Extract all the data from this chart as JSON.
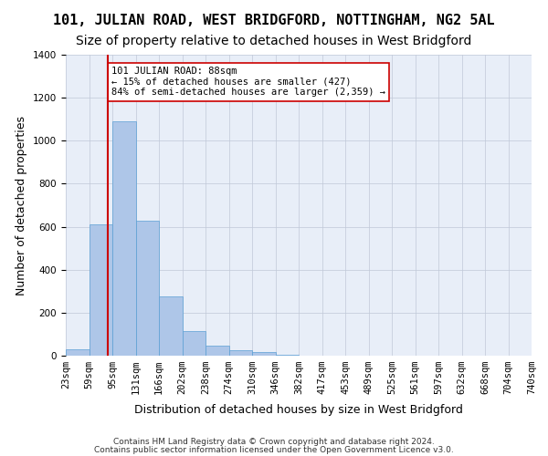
{
  "title": "101, JULIAN ROAD, WEST BRIDGFORD, NOTTINGHAM, NG2 5AL",
  "subtitle": "Size of property relative to detached houses in West Bridgford",
  "xlabel": "Distribution of detached houses by size in West Bridgford",
  "ylabel": "Number of detached properties",
  "footnote1": "Contains HM Land Registry data © Crown copyright and database right 2024.",
  "footnote2": "Contains public sector information licensed under the Open Government Licence v3.0.",
  "bin_labels": [
    "23sqm",
    "59sqm",
    "95sqm",
    "131sqm",
    "166sqm",
    "202sqm",
    "238sqm",
    "274sqm",
    "310sqm",
    "346sqm",
    "382sqm",
    "417sqm",
    "453sqm",
    "489sqm",
    "525sqm",
    "561sqm",
    "597sqm",
    "632sqm",
    "668sqm",
    "704sqm",
    "740sqm"
  ],
  "bar_values": [
    28,
    610,
    1090,
    630,
    275,
    115,
    45,
    25,
    15,
    5,
    2,
    0,
    0,
    0,
    0,
    0,
    0,
    0,
    0,
    0
  ],
  "bar_color": "#aec6e8",
  "bar_edge_color": "#5a9fd4",
  "grid_color": "#c0c8d8",
  "background_color": "#e8eef8",
  "vline_color": "#cc0000",
  "annotation_text": "101 JULIAN ROAD: 88sqm\n← 15% of detached houses are smaller (427)\n84% of semi-detached houses are larger (2,359) →",
  "annotation_box_color": "#ffffff",
  "annotation_box_edge": "#cc0000",
  "ylim": [
    0,
    1400
  ],
  "title_fontsize": 11,
  "subtitle_fontsize": 10,
  "xlabel_fontsize": 9,
  "ylabel_fontsize": 9,
  "tick_fontsize": 7.5,
  "footnote_fontsize": 6.5
}
